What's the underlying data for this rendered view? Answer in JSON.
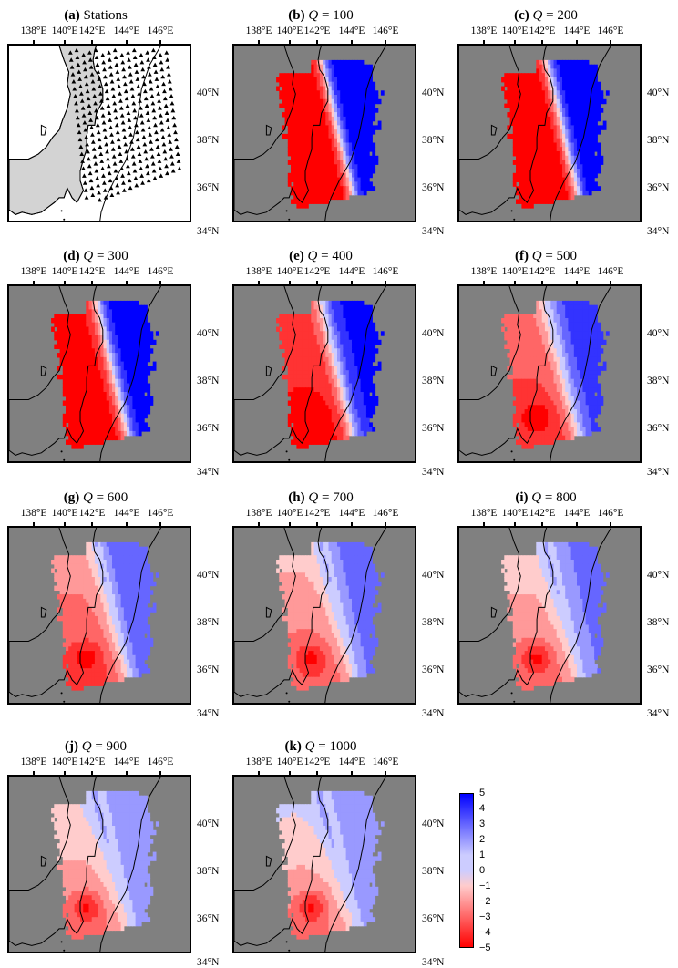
{
  "panels": [
    {
      "letter": "(a)",
      "label": "Stations",
      "q": null,
      "type": "stations"
    },
    {
      "letter": "(b)",
      "label": "Q = 100",
      "q": "100",
      "type": "map",
      "s": 1.0,
      "r": 0.0
    },
    {
      "letter": "(c)",
      "label": "Q = 200",
      "q": "200",
      "type": "map",
      "s": 1.0,
      "r": 0.05
    },
    {
      "letter": "(d)",
      "label": "Q = 300",
      "q": "300",
      "type": "map",
      "s": 0.95,
      "r": 0.15
    },
    {
      "letter": "(e)",
      "label": "Q = 400",
      "q": "400",
      "type": "map",
      "s": 0.85,
      "r": 0.3
    },
    {
      "letter": "(f)",
      "label": "Q = 500",
      "q": "500",
      "type": "map",
      "s": 0.7,
      "r": 0.45
    },
    {
      "letter": "(g)",
      "label": "Q = 600",
      "q": "600",
      "type": "map",
      "s": 0.6,
      "r": 0.55
    },
    {
      "letter": "(h)",
      "label": "Q = 700",
      "q": "700",
      "type": "map",
      "s": 0.5,
      "r": 0.62
    },
    {
      "letter": "(i)",
      "label": "Q = 800",
      "q": "800",
      "type": "map",
      "s": 0.45,
      "r": 0.68
    },
    {
      "letter": "(j)",
      "label": "Q = 900",
      "q": "900",
      "type": "map",
      "s": 0.4,
      "r": 0.73
    },
    {
      "letter": "(k)",
      "label": "Q = 1000",
      "q": "1000",
      "type": "map",
      "s": 0.38,
      "r": 0.76
    }
  ],
  "axes": {
    "lon_labels": [
      "138°E",
      "140°E",
      "142°E",
      "144°E",
      "146°E"
    ],
    "lat_labels": [
      "40°N",
      "38°N",
      "36°N",
      "34°N"
    ]
  },
  "colorbar": {
    "ticks": [
      "5",
      "4",
      "3",
      "2",
      "1",
      "0",
      "−1",
      "−2",
      "−3",
      "−4",
      "−5"
    ],
    "max_color": "#0000ff",
    "min_color": "#ff0000",
    "mid_color": "#ffffff"
  },
  "colors": {
    "ocean": "#808080",
    "land_outside": "#d3d3d3",
    "coast": "#000000"
  }
}
